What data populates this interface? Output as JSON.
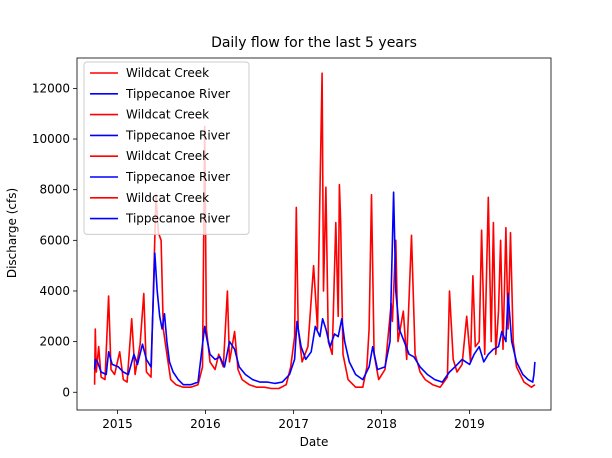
{
  "chart_data": {
    "type": "line",
    "title": "Daily flow for the last 5 years",
    "xlabel": "Date",
    "ylabel": "Discharge (cfs)",
    "x_ticks": [
      "2015",
      "2016",
      "2017",
      "2018",
      "2019"
    ],
    "y_ticks": [
      0,
      2000,
      4000,
      6000,
      8000,
      10000,
      12000
    ],
    "xlim": [
      "2014-07-17",
      "2019-12-05"
    ],
    "ylim": [
      -700,
      13200
    ],
    "legend_position": "top-left",
    "series": [
      {
        "name": "Wildcat Creek",
        "color": "#ff0000",
        "points": [
          [
            "2014-09-28",
            300
          ],
          [
            "2014-10-01",
            2500
          ],
          [
            "2014-10-05",
            800
          ],
          [
            "2014-10-15",
            1800
          ],
          [
            "2014-10-25",
            600
          ],
          [
            "2014-11-10",
            500
          ],
          [
            "2014-11-25",
            3800
          ],
          [
            "2014-12-05",
            900
          ],
          [
            "2014-12-20",
            700
          ],
          [
            "2015-01-10",
            1600
          ],
          [
            "2015-01-25",
            500
          ],
          [
            "2015-02-10",
            400
          ],
          [
            "2015-03-01",
            2900
          ],
          [
            "2015-03-15",
            700
          ],
          [
            "2015-04-05",
            1900
          ],
          [
            "2015-04-20",
            3900
          ],
          [
            "2015-05-01",
            800
          ],
          [
            "2015-05-20",
            600
          ],
          [
            "2015-06-10",
            7800
          ],
          [
            "2015-06-20",
            6300
          ],
          [
            "2015-07-01",
            6000
          ],
          [
            "2015-07-10",
            2500
          ],
          [
            "2015-07-25",
            1500
          ],
          [
            "2015-08-10",
            500
          ],
          [
            "2015-09-01",
            300
          ],
          [
            "2015-10-01",
            200
          ],
          [
            "2015-11-01",
            200
          ],
          [
            "2015-12-01",
            300
          ],
          [
            "2015-12-20",
            1000
          ],
          [
            "2015-12-29",
            10500
          ],
          [
            "2016-01-05",
            2500
          ],
          [
            "2016-01-20",
            1200
          ],
          [
            "2016-02-10",
            900
          ],
          [
            "2016-02-25",
            1500
          ],
          [
            "2016-03-15",
            1000
          ],
          [
            "2016-04-01",
            4000
          ],
          [
            "2016-04-10",
            1200
          ],
          [
            "2016-05-01",
            2400
          ],
          [
            "2016-05-15",
            900
          ],
          [
            "2016-06-01",
            500
          ],
          [
            "2016-07-01",
            300
          ],
          [
            "2016-08-01",
            200
          ],
          [
            "2016-09-01",
            200
          ],
          [
            "2016-10-01",
            150
          ],
          [
            "2016-11-01",
            150
          ],
          [
            "2016-12-01",
            300
          ],
          [
            "2016-12-20",
            1000
          ],
          [
            "2017-01-05",
            2200
          ],
          [
            "2017-01-12",
            7300
          ],
          [
            "2017-01-20",
            2500
          ],
          [
            "2017-02-05",
            1200
          ],
          [
            "2017-03-01",
            1800
          ],
          [
            "2017-03-25",
            5000
          ],
          [
            "2017-04-10",
            2500
          ],
          [
            "2017-04-29",
            12600
          ],
          [
            "2017-05-05",
            4000
          ],
          [
            "2017-05-15",
            8100
          ],
          [
            "2017-05-25",
            2000
          ],
          [
            "2017-06-10",
            1500
          ],
          [
            "2017-06-25",
            6700
          ],
          [
            "2017-07-05",
            3000
          ],
          [
            "2017-07-10",
            8200
          ],
          [
            "2017-07-15",
            6800
          ],
          [
            "2017-07-25",
            1500
          ],
          [
            "2017-08-15",
            500
          ],
          [
            "2017-09-15",
            200
          ],
          [
            "2017-10-15",
            200
          ],
          [
            "2017-11-01",
            1000
          ],
          [
            "2017-11-10",
            2500
          ],
          [
            "2017-11-20",
            7800
          ],
          [
            "2017-12-01",
            1500
          ],
          [
            "2017-12-20",
            500
          ],
          [
            "2018-01-15",
            900
          ],
          [
            "2018-02-10",
            3500
          ],
          [
            "2018-02-15",
            2800
          ],
          [
            "2018-03-01",
            6000
          ],
          [
            "2018-03-10",
            2000
          ],
          [
            "2018-04-01",
            3200
          ],
          [
            "2018-04-15",
            1300
          ],
          [
            "2018-05-05",
            6200
          ],
          [
            "2018-05-20",
            1500
          ],
          [
            "2018-06-10",
            800
          ],
          [
            "2018-07-01",
            500
          ],
          [
            "2018-08-01",
            300
          ],
          [
            "2018-09-01",
            200
          ],
          [
            "2018-10-01",
            600
          ],
          [
            "2018-10-10",
            4000
          ],
          [
            "2018-10-25",
            1300
          ],
          [
            "2018-11-10",
            800
          ],
          [
            "2018-12-01",
            1100
          ],
          [
            "2018-12-20",
            3000
          ],
          [
            "2019-01-05",
            1200
          ],
          [
            "2019-01-15",
            4600
          ],
          [
            "2019-01-25",
            1800
          ],
          [
            "2019-02-10",
            2000
          ],
          [
            "2019-02-20",
            6400
          ],
          [
            "2019-03-05",
            1500
          ],
          [
            "2019-03-20",
            7700
          ],
          [
            "2019-04-01",
            2000
          ],
          [
            "2019-04-10",
            6700
          ],
          [
            "2019-04-20",
            1500
          ],
          [
            "2019-05-01",
            3200
          ],
          [
            "2019-05-10",
            6000
          ],
          [
            "2019-05-20",
            1700
          ],
          [
            "2019-06-01",
            6500
          ],
          [
            "2019-06-10",
            2500
          ],
          [
            "2019-06-20",
            6300
          ],
          [
            "2019-07-01",
            2000
          ],
          [
            "2019-07-15",
            1000
          ],
          [
            "2019-08-15",
            400
          ],
          [
            "2019-09-15",
            200
          ],
          [
            "2019-09-29",
            300
          ]
        ]
      },
      {
        "name": "Tippecanoe River",
        "color": "#0000ff",
        "points": [
          [
            "2014-09-28",
            900
          ],
          [
            "2014-10-01",
            1300
          ],
          [
            "2014-10-10",
            1200
          ],
          [
            "2014-10-25",
            800
          ],
          [
            "2014-11-15",
            700
          ],
          [
            "2014-11-25",
            1600
          ],
          [
            "2014-12-10",
            1100
          ],
          [
            "2015-01-05",
            1000
          ],
          [
            "2015-01-25",
            800
          ],
          [
            "2015-02-15",
            700
          ],
          [
            "2015-03-10",
            1500
          ],
          [
            "2015-03-25",
            1100
          ],
          [
            "2015-04-15",
            1900
          ],
          [
            "2015-05-01",
            1300
          ],
          [
            "2015-05-20",
            1000
          ],
          [
            "2015-06-05",
            5500
          ],
          [
            "2015-06-15",
            4000
          ],
          [
            "2015-06-25",
            3000
          ],
          [
            "2015-07-05",
            2500
          ],
          [
            "2015-07-15",
            3100
          ],
          [
            "2015-07-25",
            2000
          ],
          [
            "2015-08-05",
            1200
          ],
          [
            "2015-08-20",
            800
          ],
          [
            "2015-09-10",
            500
          ],
          [
            "2015-10-01",
            300
          ],
          [
            "2015-11-01",
            300
          ],
          [
            "2015-12-01",
            400
          ],
          [
            "2015-12-29",
            2600
          ],
          [
            "2016-01-05",
            2200
          ],
          [
            "2016-01-20",
            1500
          ],
          [
            "2016-02-10",
            1300
          ],
          [
            "2016-03-01",
            1400
          ],
          [
            "2016-03-20",
            1000
          ],
          [
            "2016-04-10",
            2000
          ],
          [
            "2016-05-01",
            1700
          ],
          [
            "2016-05-20",
            1000
          ],
          [
            "2016-06-15",
            700
          ],
          [
            "2016-07-15",
            500
          ],
          [
            "2016-08-15",
            400
          ],
          [
            "2016-09-15",
            400
          ],
          [
            "2016-10-15",
            350
          ],
          [
            "2016-11-15",
            400
          ],
          [
            "2016-12-15",
            700
          ],
          [
            "2017-01-05",
            1300
          ],
          [
            "2017-01-15",
            2800
          ],
          [
            "2017-02-01",
            1800
          ],
          [
            "2017-02-20",
            1300
          ],
          [
            "2017-03-15",
            1600
          ],
          [
            "2017-04-01",
            2600
          ],
          [
            "2017-04-20",
            2200
          ],
          [
            "2017-05-01",
            2900
          ],
          [
            "2017-05-15",
            2500
          ],
          [
            "2017-06-01",
            1800
          ],
          [
            "2017-06-20",
            2300
          ],
          [
            "2017-07-05",
            2200
          ],
          [
            "2017-07-20",
            2900
          ],
          [
            "2017-08-01",
            2000
          ],
          [
            "2017-08-20",
            1200
          ],
          [
            "2017-09-15",
            700
          ],
          [
            "2017-10-15",
            500
          ],
          [
            "2017-11-10",
            1000
          ],
          [
            "2017-11-25",
            1800
          ],
          [
            "2017-12-15",
            900
          ],
          [
            "2018-01-15",
            1000
          ],
          [
            "2018-02-05",
            2000
          ],
          [
            "2018-02-20",
            7900
          ],
          [
            "2018-03-01",
            4000
          ],
          [
            "2018-03-15",
            2500
          ],
          [
            "2018-04-05",
            2000
          ],
          [
            "2018-04-25",
            1500
          ],
          [
            "2018-05-15",
            1400
          ],
          [
            "2018-06-10",
            1000
          ],
          [
            "2018-07-10",
            700
          ],
          [
            "2018-08-10",
            500
          ],
          [
            "2018-09-10",
            400
          ],
          [
            "2018-10-10",
            800
          ],
          [
            "2018-11-01",
            1000
          ],
          [
            "2018-12-01",
            1300
          ],
          [
            "2019-01-01",
            1100
          ],
          [
            "2019-01-20",
            1500
          ],
          [
            "2019-02-10",
            1800
          ],
          [
            "2019-03-01",
            1200
          ],
          [
            "2019-03-20",
            1500
          ],
          [
            "2019-04-10",
            1700
          ],
          [
            "2019-05-01",
            1800
          ],
          [
            "2019-05-15",
            2400
          ],
          [
            "2019-06-01",
            2000
          ],
          [
            "2019-06-10",
            3900
          ],
          [
            "2019-06-25",
            2000
          ],
          [
            "2019-07-15",
            1200
          ],
          [
            "2019-08-10",
            700
          ],
          [
            "2019-09-01",
            500
          ],
          [
            "2019-09-20",
            400
          ],
          [
            "2019-09-25",
            700
          ],
          [
            "2019-09-29",
            1200
          ]
        ]
      }
    ],
    "legend_entries": [
      {
        "name": "Wildcat Creek",
        "color": "#ff0000"
      },
      {
        "name": "Tippecanoe River",
        "color": "#0000ff"
      },
      {
        "name": "Wildcat Creek",
        "color": "#ff0000"
      },
      {
        "name": "Tippecanoe River",
        "color": "#0000ff"
      },
      {
        "name": "Wildcat Creek",
        "color": "#ff0000"
      },
      {
        "name": "Tippecanoe River",
        "color": "#0000ff"
      },
      {
        "name": "Wildcat Creek",
        "color": "#ff0000"
      },
      {
        "name": "Tippecanoe River",
        "color": "#0000ff"
      }
    ]
  }
}
